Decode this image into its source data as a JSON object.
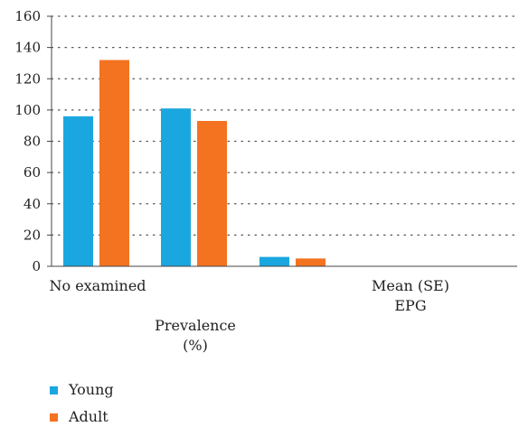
{
  "chart_data": {
    "type": "bar",
    "categories": [
      "No examined",
      "Prevalence (%)",
      "Mean (SE) EPG"
    ],
    "category_lines": [
      [
        "No examined"
      ],
      [
        "Prevalence",
        "(%)"
      ],
      [
        "Mean (SE)",
        "EPG"
      ]
    ],
    "series": [
      {
        "name": "Young",
        "color": "#1aa7e0",
        "values": [
          96,
          101,
          6
        ]
      },
      {
        "name": "Adult",
        "color": "#f47321",
        "values": [
          132,
          93,
          5
        ]
      }
    ],
    "ylim": [
      0,
      160
    ],
    "yticks": [
      0,
      20,
      40,
      60,
      80,
      100,
      120,
      140,
      160
    ],
    "grid": true,
    "grid_style": "dotted",
    "legend_position": "bottom-left",
    "title": "",
    "xlabel": "",
    "ylabel": ""
  }
}
